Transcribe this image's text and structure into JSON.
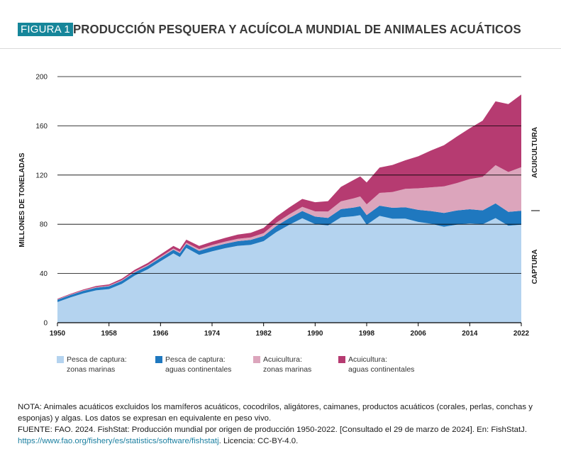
{
  "header": {
    "badge": "FIGURA 1",
    "title": "PRODUCCIÓN PESQUERA Y ACUÍCOLA MUNDIAL DE ANIMALES ACUÁTICOS"
  },
  "colors": {
    "capture_marine": "#b4d3ef",
    "capture_inland": "#1f78bf",
    "aqua_marine": "#dca5bc",
    "aqua_inland": "#b63b71",
    "gridline": "#000000"
  },
  "chart_data": {
    "type": "area",
    "stacked": true,
    "title": "PRODUCCIÓN PESQUERA Y ACUÍCOLA MUNDIAL DE ANIMALES ACUÁTICOS",
    "ylabel": "MILLONES DE TONELADAS",
    "xlabel": "",
    "xlim": [
      1950,
      2022
    ],
    "ylim": [
      0,
      200
    ],
    "xticks": [
      1950,
      1958,
      1966,
      1974,
      1982,
      1990,
      1998,
      2006,
      2014,
      2022
    ],
    "yticks": [
      0,
      40,
      80,
      120,
      160,
      200
    ],
    "grid": true,
    "right_labels": [
      "ACUICULTURA",
      "CAPTURA"
    ],
    "x": [
      1950,
      1952,
      1954,
      1956,
      1958,
      1960,
      1962,
      1964,
      1966,
      1968,
      1969,
      1970,
      1972,
      1974,
      1976,
      1978,
      1980,
      1982,
      1984,
      1986,
      1988,
      1990,
      1992,
      1994,
      1996,
      1997,
      1998,
      2000,
      2002,
      2004,
      2006,
      2008,
      2010,
      2012,
      2014,
      2016,
      2018,
      2020,
      2022
    ],
    "series": [
      {
        "name": "Pesca de captura: zonas marinas",
        "values": [
          16.8,
          20.5,
          23.8,
          26.3,
          27.3,
          31.5,
          38.3,
          43.4,
          49.9,
          56.3,
          53.4,
          60.8,
          55.1,
          58.0,
          60.5,
          62.5,
          63.3,
          66.3,
          73.7,
          79.6,
          84.9,
          80.1,
          79.0,
          85.6,
          86.5,
          87.4,
          79.6,
          86.8,
          84.5,
          84.6,
          81.9,
          80.4,
          78.0,
          79.7,
          80.7,
          80.0,
          85.0,
          78.8,
          79.7
        ]
      },
      {
        "name": "Pesca de captura: aguas continentales",
        "values": [
          1.9,
          2.0,
          2.1,
          2.2,
          2.3,
          2.5,
          2.6,
          2.7,
          2.8,
          3.0,
          3.1,
          3.1,
          3.3,
          3.5,
          3.6,
          3.8,
          4.0,
          4.2,
          5.0,
          5.5,
          5.9,
          6.1,
          6.2,
          6.7,
          7.1,
          7.2,
          7.9,
          8.3,
          8.9,
          9.2,
          9.8,
          10.3,
          11.2,
          11.5,
          11.5,
          11.3,
          12.0,
          11.3,
          11.3
        ]
      },
      {
        "name": "Acuicultura: zonas marinas",
        "values": [
          0.3,
          0.3,
          0.4,
          0.5,
          0.5,
          0.6,
          0.7,
          0.8,
          0.9,
          1.0,
          1.1,
          1.2,
          1.4,
          1.6,
          1.7,
          1.9,
          2.0,
          2.3,
          2.6,
          3.0,
          3.4,
          4.3,
          5.1,
          6.3,
          7.5,
          8.0,
          8.7,
          10.4,
          12.8,
          15.0,
          17.5,
          19.3,
          21.6,
          22.3,
          24.5,
          27.2,
          31.0,
          32.4,
          35.4
        ]
      },
      {
        "name": "Acuicultura: aguas continentales",
        "values": [
          0.5,
          0.6,
          0.7,
          0.8,
          1.0,
          1.2,
          1.4,
          1.6,
          1.9,
          2.1,
          2.2,
          2.4,
          2.6,
          2.8,
          3.1,
          3.4,
          3.7,
          4.2,
          4.9,
          5.6,
          6.4,
          7.4,
          8.5,
          11.8,
          15.0,
          16.3,
          17.8,
          20.6,
          22.0,
          23.2,
          26.0,
          30.0,
          33.4,
          37.8,
          41.3,
          45.7,
          51.9,
          55.2,
          59.1
        ]
      }
    ]
  },
  "legend": [
    {
      "line1": "Pesca de captura:",
      "line2": "zonas marinas"
    },
    {
      "line1": "Pesca de captura:",
      "line2": "aguas continentales"
    },
    {
      "line1": "Acuicultura:",
      "line2": "zonas marinas"
    },
    {
      "line1": "Acuicultura:",
      "line2": "aguas continentales"
    }
  ],
  "notes": {
    "nota": "NOTA: Animales acuáticos excluidos los mamíferos acuáticos, cocodrilos, aligátores, caimanes, productos acuáticos (corales, perlas, conchas y esponjas) y algas. Los datos se expresan en equivalente en peso vivo.",
    "fuente": "FUENTE: FAO. 2024. FishStat: Producción mundial por origen de producción 1950-2022. [Consultado el 29 de marzo de 2024]. En: FishStatJ.",
    "url": "https://www.fao.org/fishery/es/statistics/software/fishstatj",
    "licencia": ". Licencia: CC-BY-4.0."
  }
}
